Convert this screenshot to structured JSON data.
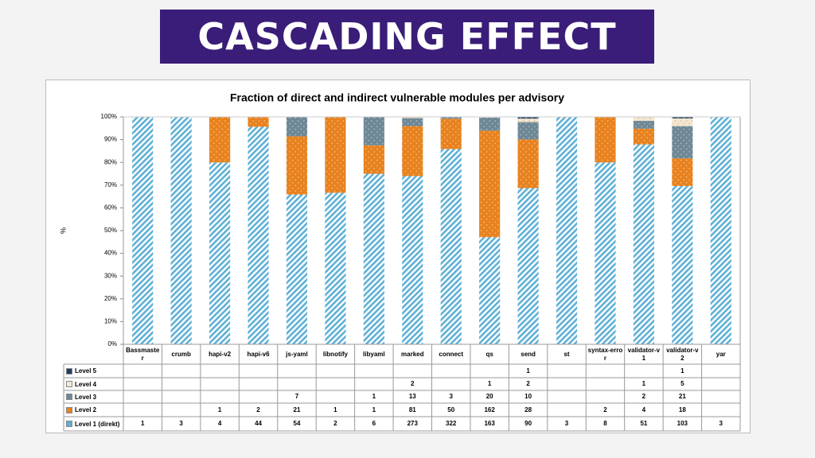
{
  "banner": {
    "title": "CASCADING EFFECT"
  },
  "chart_data": {
    "type": "bar",
    "stack": "percent",
    "title": "Fraction of direct and indirect vulnerable modules per advisory",
    "y_label": "%",
    "categories": [
      "Bassmaster",
      "crumb",
      "hapi-v2",
      "hapi-v6",
      "js-yaml",
      "libnotify",
      "libyaml",
      "marked",
      "connect",
      "qs",
      "send",
      "st",
      "syntax-error",
      "validator-v1",
      "validator-v2",
      "yar"
    ],
    "series": [
      {
        "name": "Level 5",
        "color": "#1f3f60",
        "values": [
          null,
          null,
          null,
          null,
          null,
          null,
          null,
          null,
          null,
          null,
          1,
          null,
          null,
          null,
          1,
          null
        ]
      },
      {
        "name": "Level 4",
        "color": "#f3e6cf",
        "values": [
          null,
          null,
          null,
          null,
          null,
          null,
          null,
          2,
          null,
          1,
          2,
          null,
          null,
          1,
          5,
          null
        ]
      },
      {
        "name": "Level 3",
        "color": "#6f8896",
        "values": [
          null,
          null,
          null,
          null,
          7,
          null,
          1,
          13,
          3,
          20,
          10,
          null,
          null,
          2,
          21,
          null
        ]
      },
      {
        "name": "Level 2",
        "color": "#e8821e",
        "values": [
          null,
          null,
          1,
          2,
          21,
          1,
          1,
          81,
          50,
          162,
          28,
          null,
          2,
          4,
          18,
          null
        ]
      },
      {
        "name": "Level 1 (direkt)",
        "color": "#5fb0d6",
        "values": [
          1,
          3,
          4,
          44,
          54,
          2,
          6,
          273,
          322,
          163,
          90,
          3,
          8,
          51,
          103,
          3
        ]
      }
    ],
    "ylim": [
      0,
      100
    ],
    "yticks": [
      {
        "value": 0,
        "label": "0%"
      },
      {
        "value": 10,
        "label": "10%"
      },
      {
        "value": 20,
        "label": "20%"
      },
      {
        "value": 30,
        "label": "30%"
      },
      {
        "value": 40,
        "label": "40%"
      },
      {
        "value": 50,
        "label": "50%"
      },
      {
        "value": 60,
        "label": "60%"
      },
      {
        "value": 70,
        "label": "70%"
      },
      {
        "value": 80,
        "label": "80%"
      },
      {
        "value": 90,
        "label": "90%"
      },
      {
        "value": 100,
        "label": "100%"
      }
    ]
  }
}
